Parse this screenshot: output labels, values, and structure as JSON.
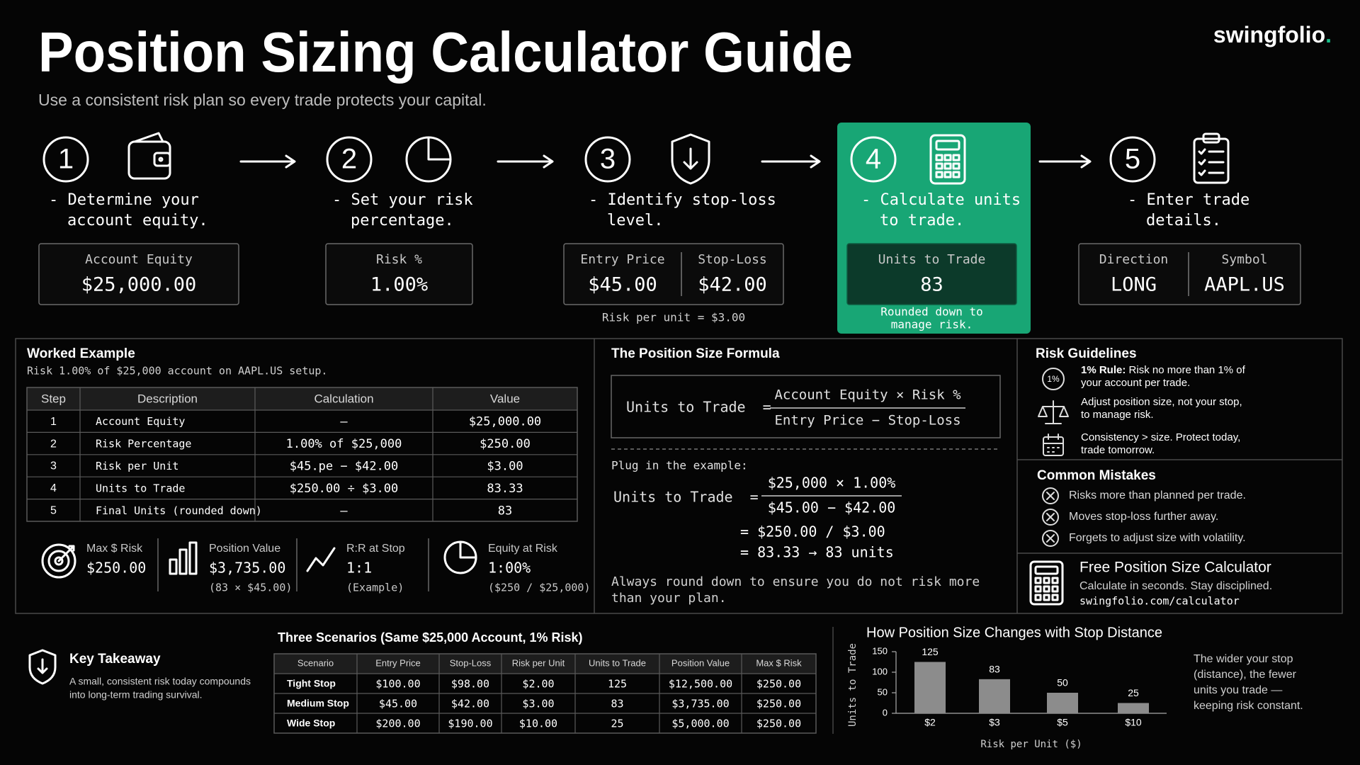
{
  "header": {
    "title": "Position Sizing Calculator Guide",
    "subtitle": "Use a consistent risk plan so every trade protects your capital.",
    "logo": {
      "name": "swingfolio",
      "dot": "."
    }
  },
  "steps": [
    {
      "number": "1",
      "description": [
        "- Determine your",
        "account equity."
      ],
      "fields": [
        {
          "label": "Account Equity",
          "value": "$25,000.00"
        }
      ]
    },
    {
      "number": "2",
      "description": [
        "- Set your risk",
        "percentage."
      ],
      "fields": [
        {
          "label": "Risk %",
          "value": "1.00%"
        }
      ]
    },
    {
      "number": "3",
      "description": [
        "- Identify stop-loss",
        "level."
      ],
      "fields": [
        {
          "label": "Entry Price",
          "value": "$45.00"
        },
        {
          "label": "Stop-Loss",
          "value": "$42.00"
        }
      ],
      "note": [
        "Risk per unit = $3.00"
      ]
    },
    {
      "number": "4",
      "description": [
        "- Calculate units",
        "to trade."
      ],
      "fields": [
        {
          "label": "Units to Trade",
          "value": "83"
        }
      ],
      "note": [
        "Rounded down to",
        "manage risk."
      ]
    },
    {
      "number": "5",
      "description": [
        "- Enter trade",
        "details."
      ],
      "fields": [
        {
          "label": "Direction",
          "value": "LONG"
        },
        {
          "label": "Symbol",
          "value": "AAPL.US"
        }
      ]
    }
  ],
  "worked_example": {
    "title": "Worked Example",
    "subtitle": "Risk 1.00% of $25,000 account on AAPL.US setup.",
    "table": {
      "header": [
        "Step",
        "Description",
        "Calculation",
        "Value"
      ],
      "rows": [
        [
          "1",
          "Account Equity",
          "—",
          "$25,000.00"
        ],
        [
          "2",
          "Risk Percentage",
          "1.00% of $25,000",
          "$250.00"
        ],
        [
          "3",
          "Risk per Unit",
          "$45.pe − $42.00",
          "$3.00"
        ],
        [
          "4",
          "Units to Trade",
          "$250.00 ÷ $3.00",
          "83.33"
        ],
        [
          "5",
          "Final Units (rounded down)",
          "—",
          "83"
        ]
      ]
    },
    "stats": [
      {
        "label": "Max $ Risk",
        "value": "$250.00"
      },
      {
        "label": "Position Value",
        "value": "$3,735.00",
        "note": "(83 × $45.00)"
      },
      {
        "label": "R:R at Stop",
        "value": "1:1",
        "note": "(Example)"
      },
      {
        "label": "Equity at Risk",
        "value": "1:00%",
        "note": "($250 / $25,000)"
      }
    ]
  },
  "formula": {
    "title": "The Position Size Formula",
    "lhs": "Units to Trade  =",
    "numerator": "Account Equity × Risk %",
    "denominator": "Entry Price − Stop-Loss",
    "plug_label": "Plug in the example:",
    "plug_lhs": "Units to Trade  =",
    "plug_numerator": "$25,000 × 1.00%",
    "plug_denominator": "$45.00 − $42.00",
    "results": [
      "= $250.00 / $3.00",
      "= 83.33 → 83 units"
    ],
    "note": [
      "Always round down to ensure you do not risk more",
      "than your plan."
    ]
  },
  "risk_guidelines": {
    "title": "Risk Guidelines",
    "items": [
      {
        "badge": "1%",
        "lead": "1% Rule:",
        "lines": [
          " Risk no more than 1% of",
          "your account per trade."
        ]
      },
      {
        "lines": [
          "Adjust position size, not your stop,",
          "to manage risk."
        ]
      },
      {
        "lines": [
          "Consistency > size. Protect today,",
          "trade tomorrow."
        ]
      }
    ]
  },
  "common_mistakes": {
    "title": "Common Mistakes",
    "items": [
      "Risks more than planned per trade.",
      "Moves stop-loss further away.",
      "Forgets to adjust size with volatility."
    ]
  },
  "calculator": {
    "title": "Free Position Size Calculator",
    "text": "Calculate in seconds. Stay disciplined.",
    "url": "swingfolio.com/calculator"
  },
  "key_takeaway": {
    "title": "Key Takeaway",
    "lines": [
      "A small, consistent risk today compounds",
      "into long-term trading survival."
    ]
  },
  "scenarios": {
    "title": "Three Scenarios (Same $25,000 Account, 1% Risk)",
    "header": [
      "Scenario",
      "Entry Price",
      "Stop-Loss",
      "Risk per Unit",
      "Units to Trade",
      "Position Value",
      "Max $ Risk"
    ],
    "rows": [
      [
        "Tight Stop",
        "$100.00",
        "$98.00",
        "$2.00",
        "125",
        "$12,500.00",
        "$250.00"
      ],
      [
        "Medium Stop",
        "$45.00",
        "$42.00",
        "$3.00",
        "83",
        "$3,735.00",
        "$250.00"
      ],
      [
        "Wide Stop",
        "$200.00",
        "$190.00",
        "$10.00",
        "25",
        "$5,000.00",
        "$250.00"
      ]
    ]
  },
  "chart_data": {
    "type": "bar",
    "title": "How Position Size Changes with Stop Distance",
    "y_label": "Units to Trade",
    "x_label": "Risk per Unit ($)",
    "categories": [
      "$2",
      "$3",
      "$5",
      "$10"
    ],
    "values": [
      125,
      83,
      50,
      25
    ],
    "color": "#8c8c8c",
    "ylim": [
      0,
      150
    ],
    "yticks": [
      0,
      50,
      100,
      150
    ],
    "annotation": [
      "The wider your stop",
      "(distance), the fewer",
      "units you trade —",
      "keeping risk constant."
    ]
  }
}
